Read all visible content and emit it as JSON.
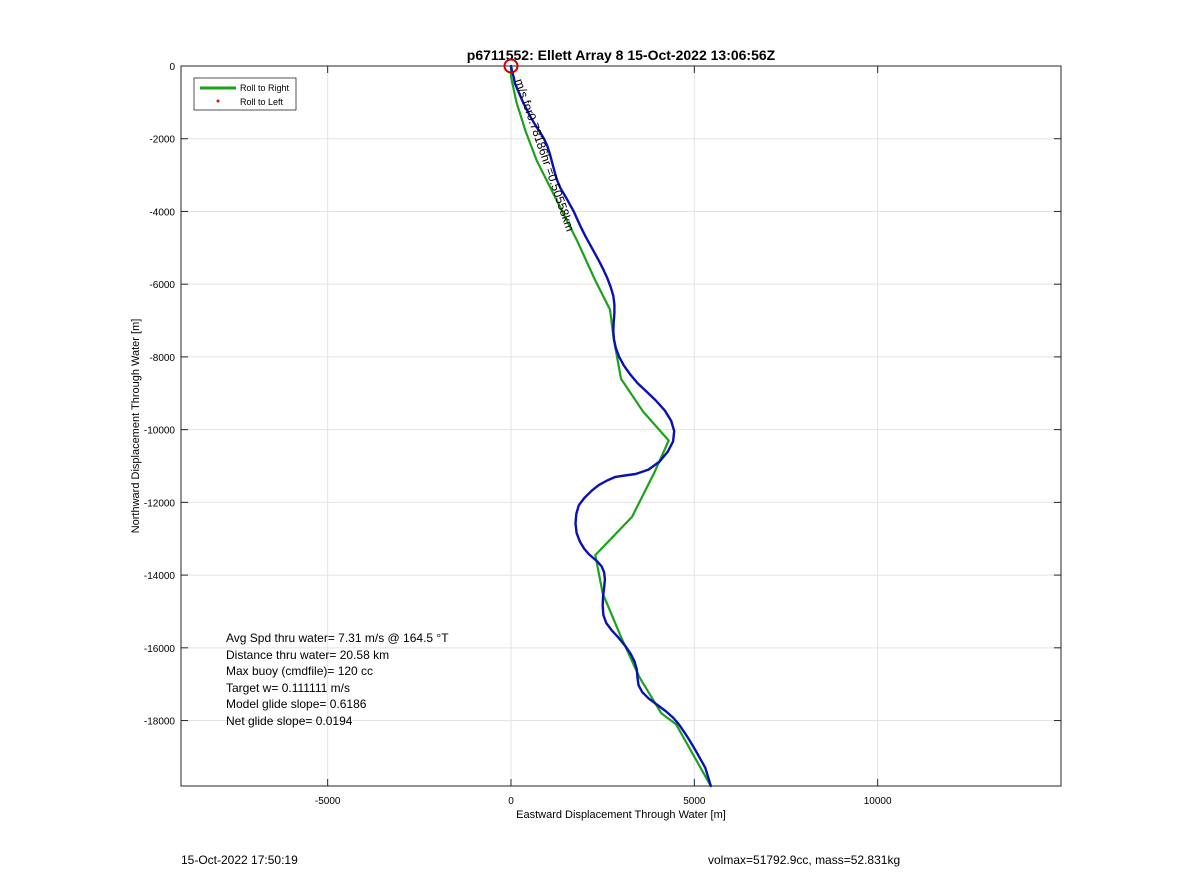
{
  "chart_data": {
    "type": "line",
    "title": "p6711552: Ellett Array 8 15-Oct-2022 13:06:56Z",
    "xlabel": "Eastward Displacement Through Water [m]",
    "ylabel": "Northward Displacement Through Water [m]",
    "xlim": [
      -9000,
      15000
    ],
    "ylim": [
      -19800,
      0
    ],
    "grid": true,
    "legend_position": "top-left",
    "x_ticks": [
      -5000,
      0,
      5000,
      10000
    ],
    "x_tick_labels": [
      "-5000",
      "0",
      "5000",
      "10000"
    ],
    "y_ticks": [
      0,
      -2000,
      -4000,
      -6000,
      -8000,
      -10000,
      -12000,
      -14000,
      -16000,
      -18000
    ],
    "y_tick_labels": [
      "0",
      "-2000",
      "-4000",
      "-6000",
      "-8000",
      "-10000",
      "-12000",
      "-14000",
      "-16000",
      "-18000"
    ],
    "series": [
      {
        "name": "Roll to Right",
        "color": "#1aa31a",
        "x": [
          0,
          0,
          150,
          400,
          700,
          1000,
          1400,
          1800,
          2300,
          2700,
          2800,
          3000,
          3600,
          4300,
          3900,
          3300,
          2300,
          2500,
          3000,
          3500,
          4100,
          4500,
          5450
        ],
        "y": [
          0,
          -300,
          -1000,
          -1800,
          -2600,
          -3200,
          -4000,
          -4800,
          -5900,
          -6700,
          -7500,
          -8600,
          -9500,
          -10300,
          -11200,
          -12400,
          -13450,
          -14500,
          -15700,
          -16800,
          -17800,
          -18100,
          -19800
        ]
      },
      {
        "name": "Roll to Left",
        "color": "#ff0000",
        "x": [],
        "y": []
      },
      {
        "name": "track",
        "color": "#0a10b4",
        "x": [
          0,
          30,
          70,
          110,
          180,
          250,
          330,
          420,
          520,
          650,
          780,
          900,
          990,
          1060,
          1120,
          1180,
          1250,
          1350,
          1480,
          1600,
          1720,
          1820,
          1920,
          2030,
          2150,
          2270,
          2400,
          2520,
          2630,
          2720,
          2790,
          2820,
          2820,
          2800,
          2790,
          2810,
          2860,
          2950,
          3080,
          3250,
          3450,
          3700,
          3950,
          4200,
          4370,
          4450,
          4420,
          4280,
          4050,
          3750,
          3400,
          3100,
          2850,
          2620,
          2400,
          2200,
          2000,
          1850,
          1780,
          1760,
          1790,
          1880,
          2000,
          2120,
          2230,
          2350,
          2470,
          2540,
          2560,
          2540,
          2510,
          2500,
          2520,
          2600,
          2750,
          2930,
          3110,
          3260,
          3370,
          3430,
          3450,
          3480,
          3580,
          3760,
          3990,
          4220,
          4420,
          4590,
          4740,
          4880,
          5020,
          5160,
          5300,
          5450
        ],
        "y": [
          0,
          -150,
          -300,
          -480,
          -650,
          -820,
          -1000,
          -1180,
          -1380,
          -1600,
          -1800,
          -2000,
          -2200,
          -2420,
          -2650,
          -2880,
          -3120,
          -3360,
          -3580,
          -3800,
          -4020,
          -4240,
          -4460,
          -4680,
          -4900,
          -5120,
          -5360,
          -5600,
          -5840,
          -6080,
          -6320,
          -6560,
          -6800,
          -7040,
          -7280,
          -7520,
          -7760,
          -8000,
          -8240,
          -8480,
          -8720,
          -8960,
          -9200,
          -9480,
          -9760,
          -10040,
          -10320,
          -10600,
          -10880,
          -11100,
          -11220,
          -11260,
          -11300,
          -11400,
          -11520,
          -11680,
          -11880,
          -12080,
          -12320,
          -12580,
          -12840,
          -13080,
          -13280,
          -13420,
          -13520,
          -13620,
          -13760,
          -13920,
          -14120,
          -14350,
          -14600,
          -14850,
          -15100,
          -15320,
          -15520,
          -15720,
          -15940,
          -16160,
          -16380,
          -16600,
          -16830,
          -17030,
          -17220,
          -17400,
          -17570,
          -17740,
          -17920,
          -18120,
          -18340,
          -18560,
          -18800,
          -19050,
          -19300,
          -19800
        ]
      }
    ],
    "start_marker": {
      "x": 0,
      "y": 0,
      "color": "#cc0000"
    },
    "annotation_text": "m/s for0.78186hr =0.50558km",
    "annotation_x": 100,
    "annotation_y": -400
  },
  "legend": {
    "items": [
      {
        "label": "Roll to Right",
        "color": "#1aa31a",
        "style": "line"
      },
      {
        "label": "Roll to Left",
        "color": "#ff0000",
        "style": "dot"
      }
    ]
  },
  "stats": {
    "lines": [
      "Avg Spd thru water=  7.31 m/s @ 164.5 °T",
      "Distance thru water= 20.58 km",
      "Max buoy (cmdfile)= 120 cc",
      "Target w= 0.111111 m/s",
      "Model glide slope= 0.6186",
      "Net glide slope= 0.0194"
    ]
  },
  "footer": {
    "timestamp": "15-Oct-2022 17:50:19",
    "volmax_mass": "volmax=51792.9cc, mass=52.831kg"
  }
}
